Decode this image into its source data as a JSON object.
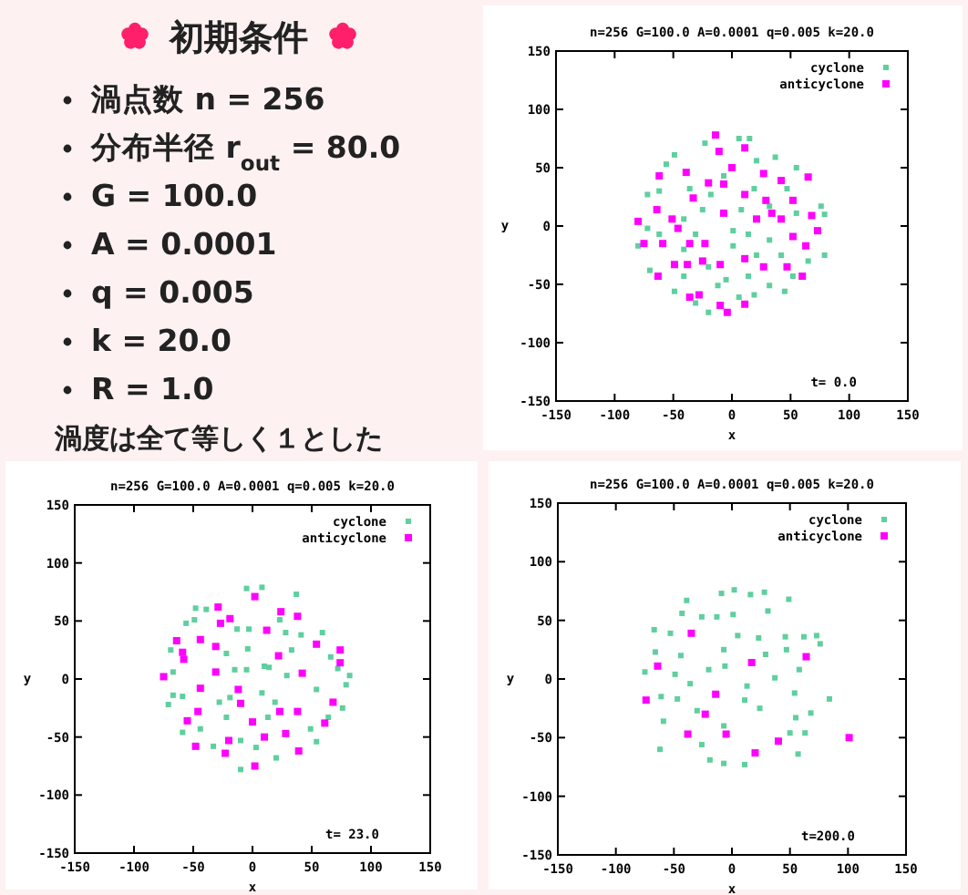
{
  "chart_data": [
    {
      "type": "other",
      "title": "初期条件",
      "annotations": [
        "渦点数 n = 256",
        "分布半径 r$_{out}$ = 80.0",
        "G = 100.0",
        "A = 0.0001",
        "q = 0.005",
        "k = 20.0",
        "R = 1.0",
        "渦度は全て等しく１とした"
      ]
    },
    {
      "type": "scatter",
      "title": "n=256 G=100.0 A=0.0001 q=0.005 k=20.0",
      "xlabel": "x",
      "ylabel": "y",
      "xlim": [
        -150,
        150
      ],
      "ylim": [
        -150,
        150
      ],
      "xticks": [
        -150,
        -100,
        -50,
        0,
        50,
        100,
        150
      ],
      "yticks": [
        -150,
        -100,
        -50,
        0,
        50,
        100,
        150
      ],
      "legend": "top right",
      "marker": "square",
      "annotations": [
        "t= 0.0"
      ],
      "series": [
        {
          "name": "cyclone",
          "color": "#5fcf9f",
          "x": [
            -23,
            6,
            15,
            -49,
            21,
            37,
            55,
            -56,
            -72,
            -62,
            -18,
            19,
            47,
            76,
            79,
            8,
            -25,
            -41,
            -72,
            -80,
            -62,
            -31,
            1,
            14,
            32,
            79,
            65,
            42,
            21,
            -5,
            -20,
            -41,
            -70,
            -49,
            -20,
            -31,
            6,
            19,
            32,
            45,
            52,
            14,
            -12,
            -7,
            -36,
            32,
            55,
            1,
            -41
          ],
          "values": [
            71,
            75,
            75,
            61,
            56,
            59,
            50,
            53,
            27,
            30,
            27,
            32,
            32,
            17,
            10,
            14,
            14,
            6,
            -2,
            -17,
            -7,
            -7,
            -4,
            -7,
            -12,
            -25,
            -30,
            -25,
            -25,
            -46,
            -35,
            -43,
            -38,
            -56,
            -74,
            -66,
            -61,
            -59,
            -51,
            -56,
            -43,
            -43,
            -51,
            43,
            32,
            17,
            11,
            -17,
            -20
          ]
        },
        {
          "name": "anticyclone",
          "color": "#ff00ff",
          "x": [
            -14,
            -11,
            11,
            0,
            -39,
            -62,
            -20,
            -7,
            27,
            42,
            65,
            52,
            29,
            11,
            -33,
            -7,
            21,
            42,
            68,
            -80,
            -64,
            -51,
            -46,
            -75,
            -59,
            -36,
            -23,
            52,
            63,
            -49,
            -38,
            -25,
            -10,
            11,
            27,
            47,
            -63,
            -36,
            -28,
            -10,
            -4,
            11,
            60,
            73,
            34
          ],
          "values": [
            78,
            64,
            67,
            50,
            46,
            43,
            37,
            36,
            45,
            39,
            42,
            22,
            22,
            27,
            24,
            11,
            6,
            6,
            9,
            4,
            14,
            6,
            -2,
            -15,
            -15,
            -15,
            -15,
            -9,
            -17,
            -33,
            -33,
            -30,
            -33,
            -28,
            -35,
            -35,
            -43,
            -61,
            -59,
            -68,
            -74,
            -67,
            -43,
            -4,
            11
          ]
        }
      ]
    },
    {
      "type": "scatter",
      "title": "n=256 G=100.0 A=0.0001 q=0.005 k=20.0",
      "xlabel": "x",
      "ylabel": "y",
      "xlim": [
        -150,
        150
      ],
      "ylim": [
        -150,
        150
      ],
      "xticks": [
        -150,
        -100,
        -50,
        0,
        50,
        100,
        150
      ],
      "yticks": [
        -150,
        -100,
        -50,
        0,
        50,
        100,
        150
      ],
      "legend": "top right",
      "marker": "square",
      "annotations": [
        "t= 23.0"
      ],
      "series": [
        {
          "name": "cyclone",
          "color": "#5fcf9f",
          "x": [
            -5,
            8,
            37,
            -48,
            -39,
            -56,
            -3,
            28,
            41,
            59,
            -69,
            -22,
            -4,
            33,
            66,
            10,
            14,
            -15,
            -5,
            -67,
            82,
            79,
            29,
            -67,
            -59,
            -28,
            -19,
            8,
            19,
            54,
            -71,
            -22,
            13,
            49,
            54,
            -59,
            -44,
            -33,
            -10,
            20,
            3,
            -10,
            64,
            76,
            -49,
            -13,
            23,
            72
          ],
          "values": [
            78,
            79,
            73,
            61,
            60,
            48,
            43,
            40,
            38,
            40,
            25,
            22,
            26,
            25,
            19,
            11,
            10,
            8,
            8,
            6,
            3,
            -5,
            3,
            -14,
            -15,
            -20,
            -16,
            -12,
            -20,
            -9,
            -22,
            -33,
            -33,
            -43,
            -54,
            -46,
            -43,
            -58,
            -78,
            -68,
            -59,
            -53,
            -33,
            -25,
            51,
            43,
            51,
            9
          ]
        },
        {
          "name": "anticyclone",
          "color": "#ff00ff",
          "x": [
            2,
            24,
            38,
            -29,
            -19,
            -27,
            -44,
            -31,
            -64,
            -59,
            -58,
            12,
            22,
            54,
            74,
            74,
            42,
            -75,
            -31,
            -44,
            -12,
            -10,
            -46,
            -55,
            0,
            23,
            38,
            68,
            61,
            28,
            10,
            -20,
            -23,
            -48,
            2,
            39
          ],
          "values": [
            71,
            58,
            54,
            62,
            52,
            48,
            34,
            28,
            33,
            23,
            17,
            42,
            20,
            30,
            25,
            14,
            5,
            2,
            6,
            -8,
            -9,
            -21,
            -28,
            -36,
            -37,
            -28,
            -28,
            -20,
            -38,
            -47,
            -50,
            -53,
            -64,
            -58,
            -75,
            -62
          ]
        }
      ]
    },
    {
      "type": "scatter",
      "title": "n=256 G=100.0 A=0.0001 q=0.005 k=20.0",
      "xlabel": "x",
      "ylabel": "y",
      "xlim": [
        -150,
        150
      ],
      "ylim": [
        -150,
        150
      ],
      "xticks": [
        -150,
        -100,
        -50,
        0,
        50,
        100,
        150
      ],
      "yticks": [
        -150,
        -100,
        -50,
        0,
        50,
        100,
        150
      ],
      "legend": "top right",
      "marker": "square",
      "annotations": [
        "t=200.0"
      ],
      "series": [
        {
          "name": "cyclone",
          "color": "#5fcf9f",
          "x": [
            2,
            16,
            28,
            -39,
            -9,
            49,
            -43,
            -26,
            -13,
            1,
            31,
            -67,
            -53,
            5,
            23,
            46,
            62,
            73,
            -66,
            -44,
            -7,
            29,
            47,
            76,
            -75,
            -49,
            -20,
            -6,
            58,
            -36,
            13,
            37,
            -61,
            -47,
            11,
            54,
            84,
            -59,
            -30,
            -7,
            24,
            55,
            68,
            -62,
            -26,
            -7,
            11,
            57,
            -19,
            50,
            63
          ],
          "values": [
            76,
            72,
            74,
            67,
            73,
            68,
            56,
            53,
            53,
            55,
            58,
            42,
            39,
            37,
            35,
            36,
            36,
            37,
            23,
            20,
            25,
            21,
            25,
            30,
            6,
            4,
            8,
            11,
            8,
            -4,
            -6,
            1,
            -15,
            -17,
            -18,
            -12,
            -17,
            -36,
            -27,
            -40,
            -25,
            -33,
            -29,
            -60,
            -56,
            -72,
            -73,
            -64,
            -69,
            -46,
            -46
          ]
        },
        {
          "name": "anticyclone",
          "color": "#ff00ff",
          "x": [
            -35,
            64,
            -64,
            17,
            -14,
            -23,
            -74,
            -38,
            -5,
            40,
            20,
            101
          ],
          "values": [
            39,
            19,
            11,
            14,
            -13,
            -30,
            -18,
            -47,
            -47,
            -53,
            -63,
            -50
          ]
        }
      ]
    }
  ]
}
